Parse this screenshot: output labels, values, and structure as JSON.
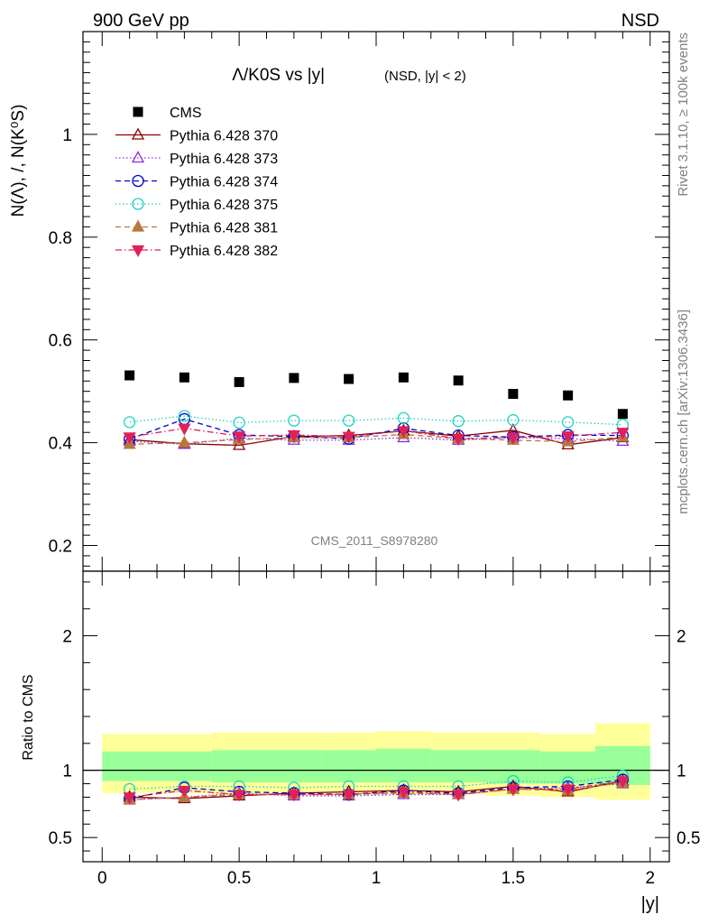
{
  "header": {
    "left": "900 GeV pp",
    "right": "NSD",
    "rivet": "Rivet 3.1.10, ≥ 100k events",
    "mcplots": "mcplots.cern.ch [arXiv:1306.3436]",
    "analysis": "CMS_2011_S8978280"
  },
  "chart_data": [
    {
      "type": "scatter",
      "title": "Λ/K0S vs |y|",
      "subtitle": "(NSD, |y| < 2)",
      "xlabel": "|y|",
      "ylabel": "N(Λ), /, N(K⁰S)",
      "xlim": [
        -0.07,
        2.07
      ],
      "ylim": [
        0.15,
        1.2
      ],
      "yticks": [
        0.2,
        0.4,
        0.6,
        0.8,
        1
      ],
      "x": [
        0.1,
        0.3,
        0.5,
        0.7,
        0.9,
        1.1,
        1.3,
        1.5,
        1.7,
        1.9
      ],
      "legend_position": "top-left",
      "series": [
        {
          "name": "CMS",
          "color": "#000000",
          "marker": "square",
          "line": "none",
          "values": [
            0.531,
            0.527,
            0.518,
            0.526,
            0.524,
            0.527,
            0.521,
            0.495,
            0.492,
            0.456
          ]
        },
        {
          "name": "Pythia 6.428 370",
          "color": "#8b0000",
          "marker": "triangle-open",
          "line": "solid",
          "values": [
            0.406,
            0.398,
            0.395,
            0.412,
            0.414,
            0.423,
            0.413,
            0.424,
            0.396,
            0.41
          ]
        },
        {
          "name": "Pythia 6.428 373",
          "color": "#8a2be2",
          "marker": "triangle-open",
          "line": "dotted",
          "values": [
            0.403,
            0.397,
            0.409,
            0.405,
            0.405,
            0.41,
            0.405,
            0.41,
            0.408,
            0.403
          ]
        },
        {
          "name": "Pythia 6.428 374",
          "color": "#0000cd",
          "marker": "circle-open",
          "line": "dashed",
          "values": [
            0.407,
            0.446,
            0.415,
            0.412,
            0.408,
            0.428,
            0.414,
            0.411,
            0.415,
            0.414
          ]
        },
        {
          "name": "Pythia 6.428 375",
          "color": "#20d2c0",
          "marker": "circle-open",
          "line": "dotted",
          "values": [
            0.44,
            0.452,
            0.439,
            0.443,
            0.443,
            0.448,
            0.442,
            0.444,
            0.44,
            0.435
          ]
        },
        {
          "name": "Pythia 6.428 381",
          "color": "#b8783c",
          "marker": "triangle-filled",
          "line": "dashed",
          "values": [
            0.397,
            0.4,
            0.406,
            0.41,
            0.41,
            0.416,
            0.408,
            0.405,
            0.402,
            0.411
          ]
        },
        {
          "name": "Pythia 6.428 382",
          "color": "#e0205a",
          "marker": "triangle-down-filled",
          "line": "dashdot",
          "values": [
            0.411,
            0.428,
            0.413,
            0.415,
            0.412,
            0.423,
            0.408,
            0.41,
            0.413,
            0.42
          ]
        }
      ]
    },
    {
      "type": "line",
      "title": "",
      "xlabel": "|y|",
      "ylabel": "Ratio to CMS",
      "xlim": [
        -0.07,
        2.07
      ],
      "ylim": [
        0.32,
        2.48
      ],
      "yticks": [
        0.5,
        1,
        2
      ],
      "xticks": [
        0,
        0.5,
        1,
        1.5,
        2
      ],
      "x_edges": [
        0,
        0.2,
        0.4,
        0.6,
        0.8,
        1.0,
        1.2,
        1.4,
        1.6,
        1.8,
        2.0
      ],
      "band_outer": [
        [
          0.83,
          1.27
        ],
        [
          0.83,
          1.27
        ],
        [
          0.82,
          1.28
        ],
        [
          0.83,
          1.28
        ],
        [
          0.82,
          1.28
        ],
        [
          0.82,
          1.29
        ],
        [
          0.82,
          1.28
        ],
        [
          0.81,
          1.28
        ],
        [
          0.8,
          1.27
        ],
        [
          0.78,
          1.35
        ]
      ],
      "band_inner": [
        [
          0.92,
          1.14
        ],
        [
          0.92,
          1.14
        ],
        [
          0.91,
          1.15
        ],
        [
          0.91,
          1.15
        ],
        [
          0.91,
          1.15
        ],
        [
          0.91,
          1.16
        ],
        [
          0.91,
          1.15
        ],
        [
          0.9,
          1.15
        ],
        [
          0.9,
          1.14
        ],
        [
          0.89,
          1.18
        ]
      ],
      "band_outer_color": "#ffff99",
      "band_inner_color": "#99ff99",
      "reference_line": 1,
      "series": [
        {
          "name": "Pythia 6.428 370",
          "color": "#8b0000",
          "marker": "triangle-open",
          "line": "solid",
          "values": [
            0.8,
            0.79,
            0.81,
            0.83,
            0.84,
            0.85,
            0.84,
            0.88,
            0.84,
            0.92
          ]
        },
        {
          "name": "Pythia 6.428 373",
          "color": "#8a2be2",
          "marker": "triangle-open",
          "line": "dotted",
          "values": [
            0.78,
            0.8,
            0.83,
            0.81,
            0.81,
            0.82,
            0.82,
            0.86,
            0.87,
            0.9
          ]
        },
        {
          "name": "Pythia 6.428 374",
          "color": "#0000cd",
          "marker": "circle-open",
          "line": "dashed",
          "values": [
            0.79,
            0.87,
            0.84,
            0.83,
            0.82,
            0.85,
            0.83,
            0.87,
            0.88,
            0.93
          ]
        },
        {
          "name": "Pythia 6.428 375",
          "color": "#20d2c0",
          "marker": "circle-open",
          "line": "dotted",
          "values": [
            0.86,
            0.88,
            0.88,
            0.87,
            0.88,
            0.88,
            0.88,
            0.92,
            0.91,
            0.96
          ]
        },
        {
          "name": "Pythia 6.428 381",
          "color": "#b8783c",
          "marker": "triangle-filled",
          "line": "dashed",
          "values": [
            0.78,
            0.8,
            0.82,
            0.82,
            0.82,
            0.83,
            0.82,
            0.86,
            0.85,
            0.91
          ]
        },
        {
          "name": "Pythia 6.428 382",
          "color": "#e0205a",
          "marker": "triangle-down-filled",
          "line": "dashdot",
          "values": [
            0.8,
            0.85,
            0.82,
            0.82,
            0.82,
            0.84,
            0.82,
            0.86,
            0.86,
            0.92
          ]
        }
      ]
    }
  ]
}
